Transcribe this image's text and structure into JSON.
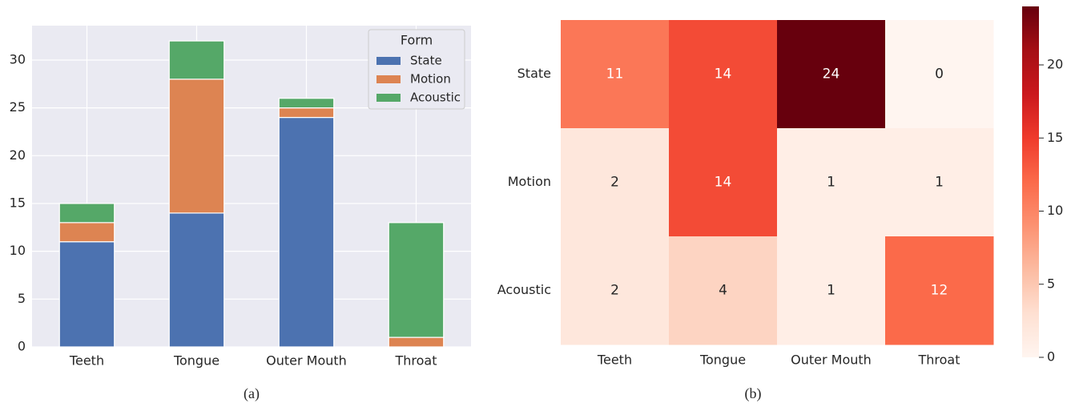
{
  "chart_data": [
    {
      "type": "stacked_bar",
      "caption": "(a)",
      "categories": [
        "Teeth",
        "Tongue",
        "Outer Mouth",
        "Throat"
      ],
      "series": [
        {
          "name": "State",
          "color": "#4c72b0",
          "values": [
            11,
            14,
            24,
            0
          ]
        },
        {
          "name": "Motion",
          "color": "#dd8452",
          "values": [
            2,
            14,
            1,
            1
          ]
        },
        {
          "name": "Acoustic",
          "color": "#55a868",
          "values": [
            2,
            4,
            1,
            12
          ]
        }
      ],
      "ylim": [
        0,
        33.6
      ],
      "yticks": [
        0,
        5,
        10,
        15,
        20,
        25,
        30
      ],
      "grid": true,
      "legend_title": "Form",
      "legend": "upper right"
    },
    {
      "type": "heatmap",
      "caption": "(b)",
      "categories": [
        "Teeth",
        "Tongue",
        "Outer Mouth",
        "Throat"
      ],
      "rows": [
        "State",
        "Motion",
        "Acoustic"
      ],
      "values": [
        [
          11,
          14,
          24,
          0
        ],
        [
          2,
          14,
          1,
          1
        ],
        [
          2,
          4,
          1,
          12
        ]
      ],
      "colormap": "Reds",
      "clim": [
        0,
        24
      ],
      "cticks": [
        0,
        5,
        10,
        15,
        20
      ]
    }
  ]
}
